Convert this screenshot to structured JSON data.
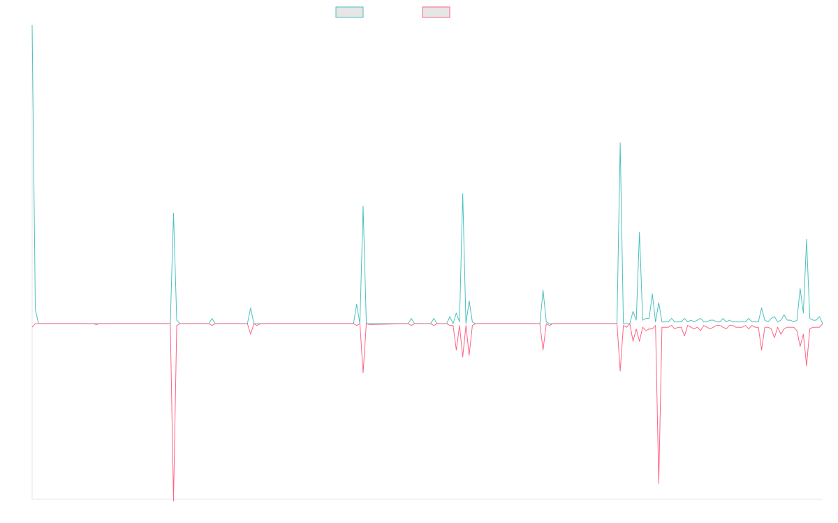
{
  "chart_data": {
    "type": "line",
    "title": "",
    "xlabel": "",
    "ylabel": "",
    "ylim": [
      -100,
      170
    ],
    "grid": false,
    "legend": {
      "placement": "top-center",
      "swatch_fill": "#e6e6e6"
    },
    "series": [
      {
        "color": "#4bc0c0",
        "points": [
          [
            0,
            170
          ],
          [
            1,
            8
          ],
          [
            2,
            0
          ],
          [
            19,
            0
          ],
          [
            20,
            0
          ],
          [
            21,
            0
          ],
          [
            43,
            0
          ],
          [
            44,
            63
          ],
          [
            45,
            2
          ],
          [
            46,
            0
          ],
          [
            55,
            0
          ],
          [
            56,
            3
          ],
          [
            57,
            0
          ],
          [
            67,
            0
          ],
          [
            68,
            9
          ],
          [
            69,
            0
          ],
          [
            70,
            0
          ],
          [
            71,
            0
          ],
          [
            100,
            0
          ],
          [
            101,
            11
          ],
          [
            102,
            0
          ],
          [
            103,
            67
          ],
          [
            104,
            0
          ],
          [
            105,
            0
          ],
          [
            117,
            0
          ],
          [
            118,
            3
          ],
          [
            119,
            0
          ],
          [
            124,
            0
          ],
          [
            125,
            3
          ],
          [
            126,
            0
          ],
          [
            129,
            0
          ],
          [
            130,
            4
          ],
          [
            131,
            0
          ],
          [
            132,
            6
          ],
          [
            133,
            1
          ],
          [
            134,
            74
          ],
          [
            135,
            0
          ],
          [
            136,
            13
          ],
          [
            137,
            1
          ],
          [
            138,
            0
          ],
          [
            158,
            0
          ],
          [
            159,
            19
          ],
          [
            160,
            1
          ],
          [
            161,
            0
          ],
          [
            162,
            0
          ],
          [
            182,
            0
          ],
          [
            183,
            103
          ],
          [
            184,
            0
          ],
          [
            185,
            0
          ],
          [
            186,
            0
          ],
          [
            187,
            7
          ],
          [
            188,
            2
          ],
          [
            189,
            52
          ],
          [
            190,
            2
          ],
          [
            191,
            3
          ],
          [
            192,
            3
          ],
          [
            193,
            17
          ],
          [
            194,
            1
          ],
          [
            195,
            12
          ],
          [
            196,
            1
          ],
          [
            197,
            1
          ],
          [
            198,
            1
          ],
          [
            199,
            3
          ],
          [
            200,
            1
          ],
          [
            201,
            1
          ],
          [
            202,
            1
          ],
          [
            203,
            3
          ],
          [
            204,
            1
          ],
          [
            205,
            2
          ],
          [
            206,
            1
          ],
          [
            207,
            2
          ],
          [
            208,
            3
          ],
          [
            209,
            1
          ],
          [
            210,
            1
          ],
          [
            211,
            2
          ],
          [
            212,
            2
          ],
          [
            213,
            1
          ],
          [
            214,
            1
          ],
          [
            215,
            3
          ],
          [
            216,
            1
          ],
          [
            217,
            2
          ],
          [
            218,
            1
          ],
          [
            219,
            1
          ],
          [
            220,
            1
          ],
          [
            221,
            1
          ],
          [
            222,
            1
          ],
          [
            223,
            3
          ],
          [
            224,
            1
          ],
          [
            225,
            1
          ],
          [
            226,
            1
          ],
          [
            227,
            9
          ],
          [
            228,
            2
          ],
          [
            229,
            1
          ],
          [
            230,
            3
          ],
          [
            231,
            4
          ],
          [
            232,
            1
          ],
          [
            233,
            2
          ],
          [
            234,
            5
          ],
          [
            235,
            2
          ],
          [
            236,
            2
          ],
          [
            237,
            1
          ],
          [
            238,
            2
          ],
          [
            239,
            20
          ],
          [
            240,
            6
          ],
          [
            241,
            48
          ],
          [
            242,
            3
          ],
          [
            243,
            2
          ],
          [
            244,
            2
          ],
          [
            245,
            4
          ],
          [
            246,
            0
          ]
        ]
      },
      {
        "color": "#ff6384",
        "points": [
          [
            0,
            -2
          ],
          [
            1,
            0
          ],
          [
            2,
            0
          ],
          [
            19,
            0
          ],
          [
            20,
            -0.5
          ],
          [
            21,
            0
          ],
          [
            43,
            0
          ],
          [
            44,
            -101
          ],
          [
            45,
            -1
          ],
          [
            46,
            0
          ],
          [
            55,
            0
          ],
          [
            56,
            -1
          ],
          [
            57,
            0
          ],
          [
            67,
            0
          ],
          [
            68,
            -6
          ],
          [
            69,
            0
          ],
          [
            70,
            -1
          ],
          [
            71,
            0
          ],
          [
            100,
            0
          ],
          [
            101,
            -1
          ],
          [
            102,
            0
          ],
          [
            103,
            -28
          ],
          [
            104,
            0
          ],
          [
            105,
            -0.5
          ],
          [
            117,
            0
          ],
          [
            118,
            -1
          ],
          [
            119,
            0
          ],
          [
            124,
            0
          ],
          [
            125,
            -1
          ],
          [
            126,
            0
          ],
          [
            129,
            0
          ],
          [
            130,
            -1
          ],
          [
            131,
            -1
          ],
          [
            132,
            -15
          ],
          [
            133,
            -1
          ],
          [
            134,
            -19
          ],
          [
            135,
            -1
          ],
          [
            136,
            -18
          ],
          [
            137,
            -1
          ],
          [
            138,
            0
          ],
          [
            158,
            0
          ],
          [
            159,
            -15
          ],
          [
            160,
            0
          ],
          [
            161,
            -1
          ],
          [
            162,
            0
          ],
          [
            182,
            0
          ],
          [
            183,
            -27
          ],
          [
            184,
            -1
          ],
          [
            185,
            -2
          ],
          [
            186,
            0
          ],
          [
            187,
            -10
          ],
          [
            188,
            -3
          ],
          [
            189,
            -10
          ],
          [
            190,
            -2
          ],
          [
            191,
            -4
          ],
          [
            192,
            -3
          ],
          [
            193,
            -3
          ],
          [
            194,
            -1
          ],
          [
            195,
            -91
          ],
          [
            196,
            -2
          ],
          [
            197,
            -2
          ],
          [
            198,
            -2
          ],
          [
            199,
            -1
          ],
          [
            200,
            -3
          ],
          [
            201,
            -2
          ],
          [
            202,
            -2
          ],
          [
            203,
            -7
          ],
          [
            204,
            -1
          ],
          [
            205,
            -2
          ],
          [
            206,
            -3
          ],
          [
            207,
            -2
          ],
          [
            208,
            -4
          ],
          [
            209,
            -1
          ],
          [
            210,
            -2
          ],
          [
            211,
            -3
          ],
          [
            212,
            -2
          ],
          [
            213,
            -1
          ],
          [
            214,
            -1
          ],
          [
            215,
            -2
          ],
          [
            216,
            -3
          ],
          [
            217,
            -1
          ],
          [
            218,
            -1
          ],
          [
            219,
            -2
          ],
          [
            220,
            -2
          ],
          [
            221,
            -2
          ],
          [
            222,
            -1
          ],
          [
            223,
            -3
          ],
          [
            224,
            -1
          ],
          [
            225,
            -2
          ],
          [
            226,
            -2
          ],
          [
            227,
            -15
          ],
          [
            228,
            -2
          ],
          [
            229,
            -2
          ],
          [
            230,
            -3
          ],
          [
            231,
            -8
          ],
          [
            232,
            -2
          ],
          [
            233,
            -6
          ],
          [
            234,
            -3
          ],
          [
            235,
            -2
          ],
          [
            236,
            -2
          ],
          [
            237,
            -2
          ],
          [
            238,
            -4
          ],
          [
            239,
            -13
          ],
          [
            240,
            -6
          ],
          [
            241,
            -24
          ],
          [
            242,
            -3
          ],
          [
            243,
            -2
          ],
          [
            244,
            -2
          ],
          [
            245,
            -2
          ],
          [
            246,
            0
          ]
        ]
      }
    ]
  }
}
